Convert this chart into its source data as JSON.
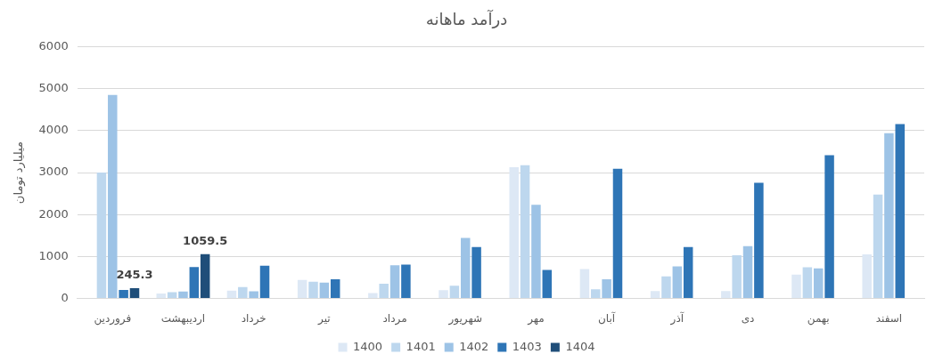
{
  "chart_data": {
    "type": "bar",
    "title": "درآمد ماهانه",
    "ylabel": "میلیارد تومان",
    "categories": [
      "فروردین",
      "اردیبهشت",
      "خرداد",
      "تیر",
      "مرداد",
      "شهریور",
      "مهر",
      "آبان",
      "آذر",
      "دی",
      "بهمن",
      "اسفند"
    ],
    "series": [
      {
        "name": "1400",
        "color": "#dde8f5",
        "values": [
          null,
          120,
          190,
          440,
          130,
          200,
          3130,
          700,
          175,
          175,
          570,
          1050
        ]
      },
      {
        "name": "1401",
        "color": "#bdd7ee",
        "values": [
          3000,
          150,
          270,
          400,
          350,
          305,
          3175,
          220,
          525,
          1030,
          745,
          2475
        ]
      },
      {
        "name": "1402",
        "color": "#9dc3e6",
        "values": [
          4850,
          165,
          170,
          380,
          790,
          1445,
          2235,
          460,
          765,
          1250,
          720,
          3940
        ]
      },
      {
        "name": "1403",
        "color": "#2e75b6",
        "values": [
          205,
          750,
          780,
          460,
          810,
          1225,
          680,
          3090,
          1225,
          2760,
          3415,
          4160
        ]
      },
      {
        "name": "1404",
        "color": "#1f4e79",
        "values": [
          245.3,
          1059.5,
          null,
          null,
          null,
          null,
          null,
          null,
          null,
          null,
          null,
          null
        ],
        "value_labels": [
          "245.3",
          "1059.5",
          null,
          null,
          null,
          null,
          null,
          null,
          null,
          null,
          null,
          null
        ]
      }
    ],
    "ylim": [
      0,
      6000
    ],
    "yticks": [
      0,
      1000,
      2000,
      3000,
      4000,
      5000,
      6000
    ],
    "grid": "y",
    "legend": "bottom"
  }
}
